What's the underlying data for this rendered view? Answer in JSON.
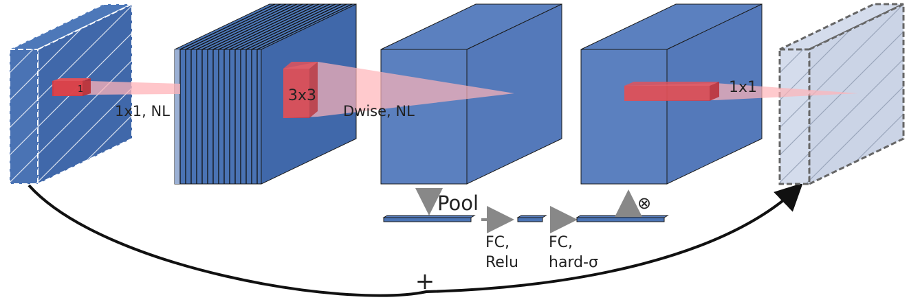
{
  "colors": {
    "block_front": "#4a73b4",
    "block_top": "#4d78b9",
    "block_side": "#4068aa",
    "block_light_front": "#5b80bf",
    "block_light_side": "#5479ba",
    "output_fill": "#d4dcec",
    "kernel_red": "#d9383f",
    "projection_pink": "#ffb3b8",
    "arrow_gray": "#888888",
    "edge": "#1a1a1a"
  },
  "labels": {
    "kernel_1": "1",
    "conv_1x1_nl": "1x1, NL",
    "kernel_3x3": "3x3",
    "dwise_nl": "Dwise, NL",
    "conv_1x1": "1x1",
    "pool": "Pool",
    "fc_relu_line1": "FC,",
    "fc_relu_line2": "Relu",
    "fc_hard_line1": "FC,",
    "fc_hard_line2": "hard-σ",
    "multiply": "⊗",
    "add": "+"
  },
  "icons": {
    "multiply": "circle-times-icon",
    "add": "plus-icon"
  }
}
